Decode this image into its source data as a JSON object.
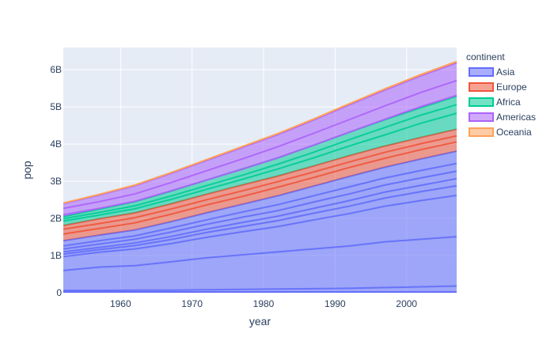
{
  "chart_data": {
    "type": "area",
    "stacked": true,
    "xlabel": "year",
    "ylabel": "pop",
    "xlim": [
      1952,
      2007
    ],
    "ylim": [
      0,
      6.6
    ],
    "x_ticks": [
      1960,
      1970,
      1980,
      1990,
      2000
    ],
    "y_ticks": [
      0,
      1,
      2,
      3,
      4,
      5,
      6
    ],
    "y_tick_labels": [
      "0",
      "1B",
      "2B",
      "3B",
      "4B",
      "5B",
      "6B"
    ],
    "x": [
      1952,
      1957,
      1962,
      1967,
      1972,
      1977,
      1982,
      1987,
      1992,
      1997,
      2002,
      2007
    ],
    "grid": true,
    "legend": {
      "title": "continent",
      "placement": "right"
    },
    "series": [
      {
        "name": "Asia",
        "color": "#636efa",
        "values": [
          1.4,
          1.55,
          1.69,
          1.91,
          2.15,
          2.38,
          2.61,
          2.87,
          3.13,
          3.38,
          3.6,
          3.81
        ]
      },
      {
        "name": "Europe",
        "color": "#ef553b",
        "values": [
          0.41,
          0.44,
          0.46,
          0.48,
          0.5,
          0.52,
          0.53,
          0.54,
          0.56,
          0.57,
          0.58,
          0.59
        ]
      },
      {
        "name": "Africa",
        "color": "#00cc96",
        "values": [
          0.24,
          0.26,
          0.3,
          0.34,
          0.38,
          0.43,
          0.49,
          0.56,
          0.63,
          0.71,
          0.8,
          0.89
        ]
      },
      {
        "name": "Americas",
        "color": "#ab63fa",
        "values": [
          0.35,
          0.38,
          0.43,
          0.48,
          0.53,
          0.58,
          0.63,
          0.68,
          0.74,
          0.8,
          0.86,
          0.9
        ]
      },
      {
        "name": "Oceania",
        "color": "#ffa15a",
        "values": [
          0.014,
          0.016,
          0.018,
          0.02,
          0.021,
          0.022,
          0.024,
          0.025,
          0.027,
          0.029,
          0.031,
          0.033
        ]
      }
    ],
    "country_lines": [
      {
        "continent": "Asia",
        "values": [
          0.06,
          0.06,
          0.07,
          0.07,
          0.08,
          0.09,
          0.1,
          0.11,
          0.12,
          0.14,
          0.16,
          0.18
        ]
      },
      {
        "continent": "Asia",
        "values": [
          0.6,
          0.69,
          0.73,
          0.83,
          0.94,
          1.02,
          1.1,
          1.18,
          1.26,
          1.37,
          1.44,
          1.51
        ]
      },
      {
        "continent": "Asia",
        "values": [
          0.97,
          1.09,
          1.18,
          1.32,
          1.49,
          1.64,
          1.78,
          1.96,
          2.13,
          2.33,
          2.48,
          2.62
        ]
      },
      {
        "continent": "Asia",
        "values": [
          1.04,
          1.16,
          1.27,
          1.43,
          1.62,
          1.78,
          1.94,
          2.14,
          2.33,
          2.55,
          2.72,
          2.88
        ]
      },
      {
        "continent": "Asia",
        "values": [
          1.1,
          1.22,
          1.34,
          1.51,
          1.71,
          1.89,
          2.06,
          2.27,
          2.48,
          2.71,
          2.89,
          3.07
        ]
      },
      {
        "continent": "Asia",
        "values": [
          1.18,
          1.31,
          1.44,
          1.63,
          1.84,
          2.03,
          2.21,
          2.44,
          2.66,
          2.9,
          3.09,
          3.27
        ]
      },
      {
        "continent": "Asia",
        "values": [
          1.26,
          1.4,
          1.53,
          1.74,
          1.96,
          2.17,
          2.37,
          2.61,
          2.85,
          3.09,
          3.29,
          3.48
        ]
      },
      {
        "continent": "Europe",
        "values": [
          1.58,
          1.73,
          1.88,
          2.11,
          2.36,
          2.59,
          2.84,
          3.1,
          3.37,
          3.62,
          3.85,
          4.06
        ]
      },
      {
        "continent": "Europe",
        "values": [
          1.71,
          1.86,
          2.02,
          2.25,
          2.5,
          2.74,
          2.99,
          3.25,
          3.52,
          3.78,
          4.01,
          4.22
        ]
      },
      {
        "continent": "Africa",
        "values": [
          1.93,
          2.09,
          2.26,
          2.51,
          2.78,
          3.05,
          3.33,
          3.63,
          3.95,
          4.25,
          4.56,
          4.83
        ]
      },
      {
        "continent": "Africa",
        "values": [
          1.99,
          2.16,
          2.34,
          2.6,
          2.88,
          3.16,
          3.46,
          3.78,
          4.12,
          4.45,
          4.78,
          5.06
        ]
      },
      {
        "continent": "Americas",
        "values": [
          2.1,
          2.27,
          2.46,
          2.74,
          3.03,
          3.32,
          3.63,
          3.97,
          4.32,
          4.67,
          5.01,
          5.31
        ]
      },
      {
        "continent": "Americas",
        "values": [
          2.27,
          2.45,
          2.66,
          2.96,
          3.28,
          3.6,
          3.93,
          4.29,
          4.66,
          5.03,
          5.39,
          5.71
        ]
      }
    ]
  }
}
